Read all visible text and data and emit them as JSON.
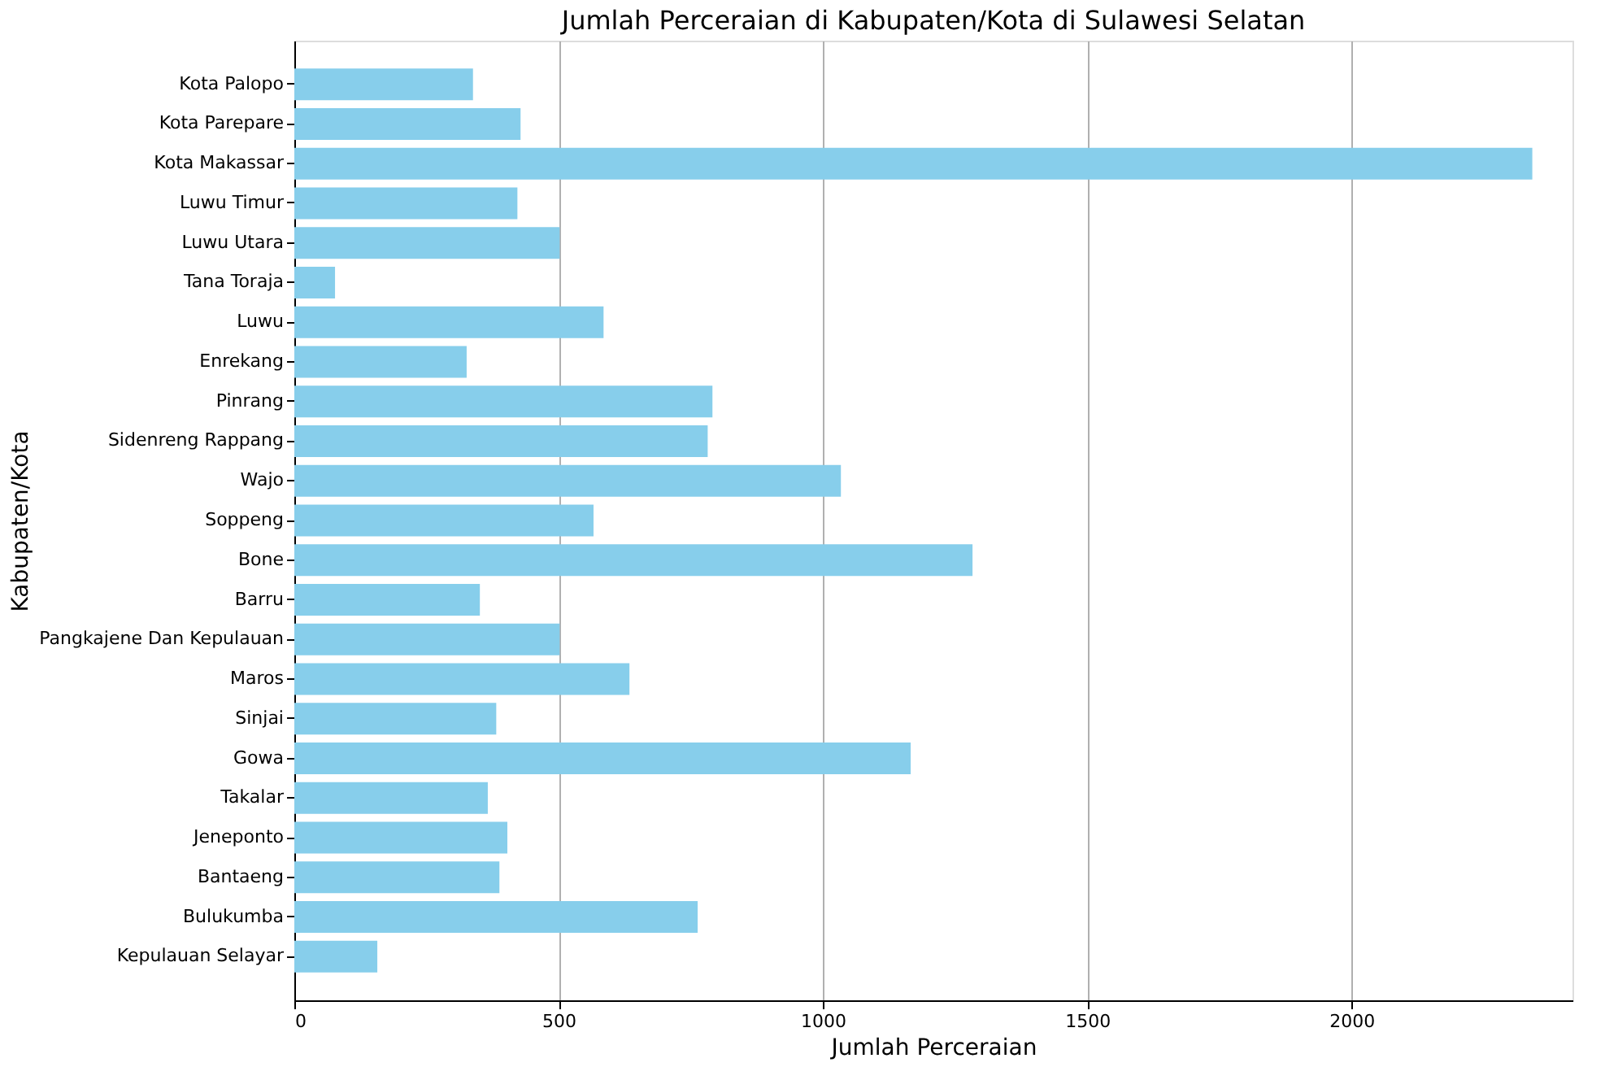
{
  "chart_data": {
    "type": "bar",
    "orientation": "horizontal",
    "title": "Jumlah Perceraian di Kabupaten/Kota di Sulawesi Selatan",
    "xlabel": "Jumlah Perceraian",
    "ylabel": "Kabupaten/Kota",
    "categories": [
      "Kota Palopo",
      "Kota Parepare",
      "Kota Makassar",
      "Luwu Timur",
      "Luwu Utara",
      "Tana Toraja",
      "Luwu",
      "Enrekang",
      "Pinrang",
      "Sidenreng Rappang",
      "Wajo",
      "Soppeng",
      "Bone",
      "Barru",
      "Pangkajene Dan Kepulauan",
      "Maros",
      "Sinjai",
      "Gowa",
      "Takalar",
      "Jeneponto",
      "Bantaeng",
      "Bulukumba",
      "Kepulauan Selayar"
    ],
    "values": [
      338,
      428,
      2342,
      422,
      502,
      77,
      585,
      326,
      791,
      782,
      1034,
      566,
      1283,
      351,
      502,
      634,
      382,
      1166,
      366,
      403,
      388,
      763,
      157
    ],
    "color": "#87ceeb",
    "xlim": [
      0,
      2418
    ],
    "xticks": [
      0,
      500,
      1000,
      1500,
      2000
    ],
    "grid": "x"
  }
}
